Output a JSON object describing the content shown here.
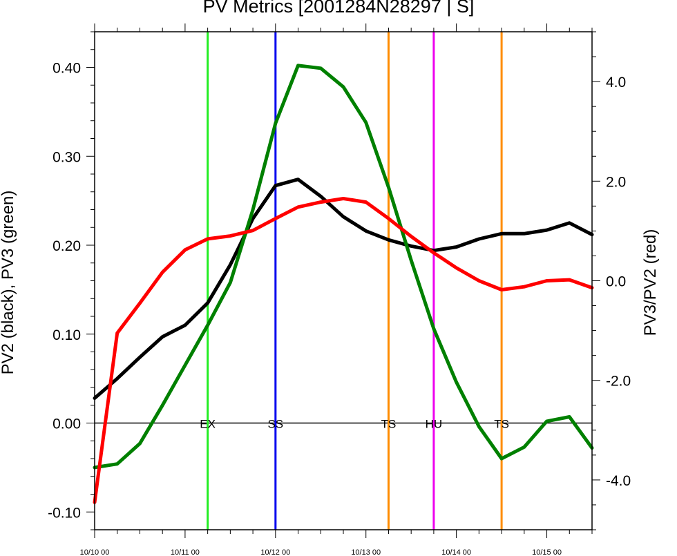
{
  "chart_data": {
    "type": "line",
    "title": "PV Metrics [2001284N28297 | S]",
    "ylabel": "PV2 (black), PV3 (green)",
    "y2label": "PV3/PV2 (red)",
    "xlim": [
      0,
      5.5
    ],
    "ylim": [
      -0.12,
      0.44
    ],
    "y2lim": [
      -5.0,
      5.0
    ],
    "x_ticks": [
      {
        "x": 0,
        "label": "10/10 00"
      },
      {
        "x": 1,
        "label": "10/11 00"
      },
      {
        "x": 2,
        "label": "10/12 00"
      },
      {
        "x": 3,
        "label": "10/13 00"
      },
      {
        "x": 4,
        "label": "10/14 00"
      },
      {
        "x": 5,
        "label": "10/15 00"
      }
    ],
    "y_ticks": [
      {
        "v": -0.1,
        "label": "-0.10"
      },
      {
        "v": 0.0,
        "label": "0.00"
      },
      {
        "v": 0.1,
        "label": "0.10"
      },
      {
        "v": 0.2,
        "label": "0.20"
      },
      {
        "v": 0.3,
        "label": "0.30"
      },
      {
        "v": 0.4,
        "label": "0.40"
      }
    ],
    "y2_ticks": [
      {
        "v": -4.0,
        "label": "-4.0"
      },
      {
        "v": -2.0,
        "label": "-2.0"
      },
      {
        "v": 0.0,
        "label": "0.0"
      },
      {
        "v": 2.0,
        "label": "2.0"
      },
      {
        "v": 4.0,
        "label": "4.0"
      }
    ],
    "x": [
      0,
      0.25,
      0.5,
      0.75,
      1.0,
      1.25,
      1.5,
      1.75,
      2.0,
      2.25,
      2.5,
      2.75,
      3.0,
      3.25,
      3.5,
      3.75,
      4.0,
      4.25,
      4.5,
      4.75,
      5.0,
      5.25,
      5.5
    ],
    "series": [
      {
        "color": "#000000",
        "axis": "left",
        "values": [
          0.028,
          0.05,
          0.074,
          0.097,
          0.11,
          0.135,
          0.178,
          0.23,
          0.267,
          0.274,
          0.255,
          0.232,
          0.216,
          0.206,
          0.199,
          0.194,
          0.198,
          0.207,
          0.213,
          0.213,
          0.217,
          0.225,
          0.212
        ]
      },
      {
        "color": "#008000",
        "axis": "left",
        "values": [
          -0.05,
          -0.046,
          -0.023,
          0.02,
          0.065,
          0.11,
          0.158,
          0.24,
          0.337,
          0.402,
          0.399,
          0.378,
          0.338,
          0.265,
          0.183,
          0.106,
          0.046,
          -0.004,
          -0.04,
          -0.027,
          0.002,
          0.007,
          -0.028
        ]
      },
      {
        "color": "#ff0000",
        "axis": "right",
        "values": [
          -4.45,
          -1.05,
          -0.45,
          0.17,
          0.62,
          0.84,
          0.9,
          1.01,
          1.25,
          1.48,
          1.58,
          1.65,
          1.58,
          1.25,
          0.89,
          0.56,
          0.26,
          0.0,
          -0.18,
          -0.12,
          0.0,
          0.02,
          -0.14
        ]
      }
    ],
    "events": [
      {
        "x": 1.25,
        "label": "EX",
        "color": "#22ee22"
      },
      {
        "x": 2.0,
        "label": "SS",
        "color": "#0000ee"
      },
      {
        "x": 3.25,
        "label": "TS",
        "color": "#ff8c00"
      },
      {
        "x": 3.75,
        "label": "HU",
        "color": "#ee00ee"
      },
      {
        "x": 4.5,
        "label": "TS",
        "color": "#ff8c00"
      }
    ],
    "zero_line": 0,
    "grid": false,
    "legend": "none"
  }
}
